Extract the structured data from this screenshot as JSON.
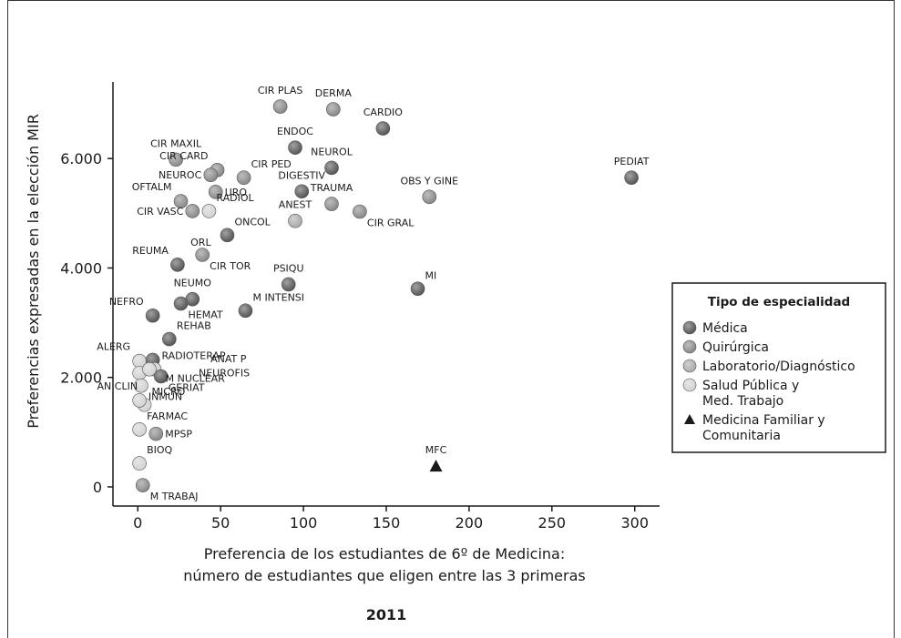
{
  "chart_data": {
    "type": "scatter",
    "title": "",
    "xlabel": [
      "Preferencia de los estudiantes de 6º de Medicina:",
      "número de estudiantes que eligen entre las 3 primeras"
    ],
    "ylabel": "Preferencias expresadas en la elección MIR",
    "caption": "2011",
    "xlim": [
      -15,
      315
    ],
    "ylim": [
      -350,
      7400
    ],
    "x_ticks": [
      0,
      50,
      100,
      150,
      200,
      250,
      300
    ],
    "x_tick_labels": [
      "0",
      "50",
      "100",
      "150",
      "200",
      "250",
      "300"
    ],
    "y_ticks": [
      0,
      2000,
      4000,
      6000
    ],
    "y_tick_labels": [
      "0",
      "2.000",
      "4.000",
      "6.000"
    ],
    "legend": {
      "title": "Tipo de especialidad",
      "position": "right",
      "entries": [
        {
          "key": "medica",
          "label": [
            "Médica"
          ],
          "color": "#555555",
          "marker": "circle"
        },
        {
          "key": "quirurgica",
          "label": [
            "Quirúrgica"
          ],
          "color": "#888888",
          "marker": "circle"
        },
        {
          "key": "laboratorio",
          "label": [
            "Laboratorio/Diagnóstico"
          ],
          "color": "#aaaaaa",
          "marker": "circle"
        },
        {
          "key": "salud",
          "label": [
            "Salud Pública y",
            "Med. Trabajo"
          ],
          "color": "#d2d2d2",
          "marker": "circle"
        },
        {
          "key": "mfc",
          "label": [
            "Medicina Familiar y",
            "Comunitaria"
          ],
          "color": "#1a1a1a",
          "marker": "triangle"
        }
      ]
    },
    "points": [
      {
        "label": "CIR PLAS",
        "x": 86,
        "y": 6950,
        "cat": "quirurgica",
        "lpos": "above"
      },
      {
        "label": "DERMA",
        "x": 118,
        "y": 6900,
        "cat": "quirurgica",
        "lpos": "above"
      },
      {
        "label": "CARDIO",
        "x": 148,
        "y": 6550,
        "cat": "medica",
        "lpos": "above"
      },
      {
        "label": "ENDOC",
        "x": 95,
        "y": 6200,
        "cat": "medica",
        "lpos": "above"
      },
      {
        "label": "NEUROL",
        "x": 117,
        "y": 5830,
        "cat": "medica",
        "lpos": "above"
      },
      {
        "label": "PEDIAT",
        "x": 298,
        "y": 5650,
        "cat": "medica",
        "lpos": "above"
      },
      {
        "label": "CIR MAXIL",
        "x": 23,
        "y": 5980,
        "cat": "quirurgica",
        "lpos": "above"
      },
      {
        "label": "CIR CARD",
        "x": 48,
        "y": 5790,
        "cat": "quirurgica",
        "lpos": "aboveleft"
      },
      {
        "label": "CIR PED",
        "x": 64,
        "y": 5650,
        "cat": "quirurgica",
        "lpos": "aboveright"
      },
      {
        "label": "NEUROC",
        "x": 44,
        "y": 5700,
        "cat": "quirurgica",
        "lpos": "left"
      },
      {
        "label": "DIGESTIV",
        "x": 99,
        "y": 5400,
        "cat": "medica",
        "lpos": "above"
      },
      {
        "label": "OFTALM",
        "x": 26,
        "y": 5220,
        "cat": "quirurgica",
        "lpos": "aboveleft"
      },
      {
        "label": "URO",
        "x": 47,
        "y": 5390,
        "cat": "quirurgica",
        "lpos": "right"
      },
      {
        "label": "TRAUMA",
        "x": 117,
        "y": 5170,
        "cat": "quirurgica",
        "lpos": "above"
      },
      {
        "label": "OBS Y GINE",
        "x": 176,
        "y": 5300,
        "cat": "quirurgica",
        "lpos": "above"
      },
      {
        "label": "CIR VASC",
        "x": 33,
        "y": 5040,
        "cat": "quirurgica",
        "lpos": "left"
      },
      {
        "label": "RADIOL",
        "x": 43,
        "y": 5040,
        "cat": "salud",
        "lpos": "aboveright"
      },
      {
        "label": "ANEST",
        "x": 95,
        "y": 4860,
        "cat": "laboratorio",
        "lpos": "above"
      },
      {
        "label": "CIR GRAL",
        "x": 134,
        "y": 5030,
        "cat": "quirurgica",
        "lpos": "belowright"
      },
      {
        "label": "ORL",
        "x": 38,
        "y": 4740,
        "cat": "none",
        "lpos": "below"
      },
      {
        "label": "ONCOL",
        "x": 54,
        "y": 4600,
        "cat": "medica",
        "lpos": "aboveright"
      },
      {
        "label": "REUMA",
        "x": 24,
        "y": 4060,
        "cat": "medica",
        "lpos": "aboveleft"
      },
      {
        "label": "CIR TOR",
        "x": 39,
        "y": 4240,
        "cat": "quirurgica",
        "lpos": "belowright"
      },
      {
        "label": "PSIQU",
        "x": 91,
        "y": 3700,
        "cat": "medica",
        "lpos": "above"
      },
      {
        "label": "MI",
        "x": 169,
        "y": 3620,
        "cat": "medica",
        "lpos": "aboveright"
      },
      {
        "label": "NEUMO",
        "x": 33,
        "y": 3430,
        "cat": "medica",
        "lpos": "above"
      },
      {
        "label": "NEFRO",
        "x": 9,
        "y": 3130,
        "cat": "medica",
        "lpos": "aboveleft"
      },
      {
        "label": "HEMAT",
        "x": 26,
        "y": 3350,
        "cat": "medica",
        "lpos": "belowright"
      },
      {
        "label": "M INTENSI",
        "x": 65,
        "y": 3220,
        "cat": "medica",
        "lpos": "aboveright"
      },
      {
        "label": "REHAB",
        "x": 19,
        "y": 2700,
        "cat": "medica",
        "lpos": "aboveright"
      },
      {
        "label": "ALERG",
        "x": 1,
        "y": 2300,
        "cat": "salud",
        "lpos": "aboveleft"
      },
      {
        "label": "M NUCLEAR",
        "x": 9,
        "y": 2320,
        "cat": "medica",
        "lpos": "aboveright2"
      },
      {
        "label": "RADIOTERAP",
        "x": 10,
        "y": 2150,
        "cat": "salud",
        "lpos": "aboveright"
      },
      {
        "label": "ANAT P",
        "x": 1,
        "y": 2080,
        "cat": "salud",
        "lpos": "farright"
      },
      {
        "label": "GERIAT",
        "x": 14,
        "y": 2020,
        "cat": "medica",
        "lpos": "belowright"
      },
      {
        "label": "INMUN",
        "x": 2,
        "y": 1850,
        "cat": "salud",
        "lpos": "belowright"
      },
      {
        "label": "NEUROFIS",
        "x": 7,
        "y": 2150,
        "cat": "salud",
        "lpos": "farright2"
      },
      {
        "label": "MICRO",
        "x": 4,
        "y": 1500,
        "cat": "salud",
        "lpos": "aboveright"
      },
      {
        "label": "AN CLIN",
        "x": 1,
        "y": 1580,
        "cat": "salud",
        "lpos": "belowleft"
      },
      {
        "label": "FARMAC",
        "x": 1,
        "y": 1050,
        "cat": "salud",
        "lpos": "aboveright"
      },
      {
        "label": "MPSP",
        "x": 11,
        "y": 970,
        "cat": "quirurgica",
        "lpos": "right"
      },
      {
        "label": "BIOQ",
        "x": 1,
        "y": 430,
        "cat": "salud",
        "lpos": "aboveright"
      },
      {
        "label": "M TRABAJ",
        "x": 3,
        "y": 30,
        "cat": "quirurgica",
        "lpos": "belowright"
      },
      {
        "label": "MFC",
        "x": 180,
        "y": 380,
        "cat": "mfc",
        "lpos": "above"
      }
    ]
  }
}
